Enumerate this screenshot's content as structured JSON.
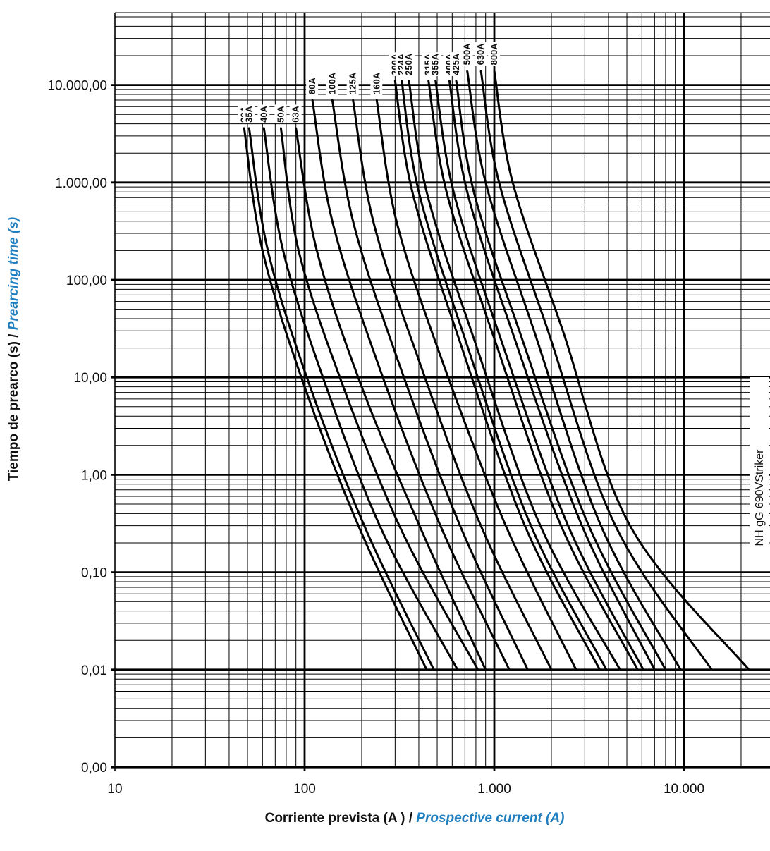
{
  "chart_data": {
    "type": "line",
    "x_scale": "log",
    "y_scale": "log",
    "xlim": [
      10,
      40000
    ],
    "ylim": [
      0.001,
      100000
    ],
    "grid": true,
    "x_ticks": [
      {
        "value": 10,
        "label": "10"
      },
      {
        "value": 100,
        "label": "100"
      },
      {
        "value": 1000,
        "label": "1.000"
      },
      {
        "value": 10000,
        "label": "10.000"
      }
    ],
    "y_ticks": [
      {
        "value": 0.001,
        "label": "0,00"
      },
      {
        "value": 0.01,
        "label": "0,01"
      },
      {
        "value": 0.1,
        "label": "0,10"
      },
      {
        "value": 1,
        "label": "1,00"
      },
      {
        "value": 10,
        "label": "10,00"
      },
      {
        "value": 100,
        "label": "100,00"
      },
      {
        "value": 1000,
        "label": "1.000,00"
      },
      {
        "value": 10000,
        "label": "10.000,00"
      }
    ],
    "xlabel": {
      "es": "Corriente prevista (A ) / ",
      "en": "Prospective current (A)"
    },
    "ylabel": {
      "es": "Tiempo de prearco (s) / ",
      "en": "Prearcing time (s)"
    },
    "side_label": "NH gG 690VStriker",
    "series": [
      {
        "name": "32A",
        "points": [
          [
            48,
            3600
          ],
          [
            60,
            200
          ],
          [
            100,
            8
          ],
          [
            200,
            0.25
          ],
          [
            440,
            0.01
          ]
        ]
      },
      {
        "name": "35A",
        "points": [
          [
            51,
            3600
          ],
          [
            64,
            200
          ],
          [
            107,
            8
          ],
          [
            215,
            0.25
          ],
          [
            480,
            0.01
          ]
        ]
      },
      {
        "name": "40A",
        "points": [
          [
            61,
            3600
          ],
          [
            77,
            200
          ],
          [
            130,
            8
          ],
          [
            260,
            0.25
          ],
          [
            640,
            0.01
          ]
        ]
      },
      {
        "name": "50A",
        "points": [
          [
            75,
            3600
          ],
          [
            93,
            200
          ],
          [
            160,
            8
          ],
          [
            330,
            0.25
          ],
          [
            820,
            0.01
          ]
        ]
      },
      {
        "name": "63A",
        "points": [
          [
            90,
            3600
          ],
          [
            116,
            200
          ],
          [
            200,
            8
          ],
          [
            420,
            0.25
          ],
          [
            900,
            0.01
          ]
        ]
      },
      {
        "name": "80A",
        "points": [
          [
            110,
            7000
          ],
          [
            140,
            400
          ],
          [
            240,
            15
          ],
          [
            520,
            0.3
          ],
          [
            1200,
            0.01
          ]
        ]
      },
      {
        "name": "100A",
        "points": [
          [
            140,
            7000
          ],
          [
            180,
            400
          ],
          [
            310,
            15
          ],
          [
            660,
            0.3
          ],
          [
            1500,
            0.01
          ]
        ]
      },
      {
        "name": "125A",
        "points": [
          [
            180,
            7000
          ],
          [
            230,
            400
          ],
          [
            400,
            15
          ],
          [
            850,
            0.3
          ],
          [
            2000,
            0.01
          ]
        ]
      },
      {
        "name": "160A",
        "points": [
          [
            240,
            7000
          ],
          [
            305,
            400
          ],
          [
            530,
            15
          ],
          [
            1150,
            0.3
          ],
          [
            2700,
            0.01
          ]
        ]
      },
      {
        "name": "200A",
        "points": [
          [
            300,
            11000
          ],
          [
            370,
            800
          ],
          [
            650,
            25
          ],
          [
            1450,
            0.3
          ],
          [
            3600,
            0.01
          ]
        ]
      },
      {
        "name": "224A",
        "points": [
          [
            325,
            11000
          ],
          [
            400,
            800
          ],
          [
            700,
            25
          ],
          [
            1560,
            0.3
          ],
          [
            3900,
            0.01
          ]
        ]
      },
      {
        "name": "250A",
        "points": [
          [
            355,
            11000
          ],
          [
            440,
            800
          ],
          [
            780,
            25
          ],
          [
            1750,
            0.3
          ],
          [
            4600,
            0.01
          ]
        ]
      },
      {
        "name": "315A",
        "points": [
          [
            450,
            11000
          ],
          [
            560,
            800
          ],
          [
            1000,
            25
          ],
          [
            2250,
            0.3
          ],
          [
            5700,
            0.01
          ]
        ]
      },
      {
        "name": "355A",
        "points": [
          [
            490,
            11000
          ],
          [
            610,
            800
          ],
          [
            1080,
            25
          ],
          [
            2450,
            0.3
          ],
          [
            6100,
            0.01
          ]
        ]
      },
      {
        "name": "400A",
        "points": [
          [
            580,
            11000
          ],
          [
            720,
            800
          ],
          [
            1280,
            25
          ],
          [
            2900,
            0.3
          ],
          [
            7000,
            0.01
          ]
        ]
      },
      {
        "name": "425A",
        "points": [
          [
            630,
            11000
          ],
          [
            780,
            800
          ],
          [
            1400,
            25
          ],
          [
            3150,
            0.3
          ],
          [
            8000,
            0.01
          ]
        ]
      },
      {
        "name": "500A",
        "points": [
          [
            720,
            14000
          ],
          [
            900,
            1000
          ],
          [
            1620,
            30
          ],
          [
            3650,
            0.3
          ],
          [
            9600,
            0.01
          ]
        ]
      },
      {
        "name": "630A",
        "points": [
          [
            850,
            14000
          ],
          [
            1060,
            1000
          ],
          [
            1920,
            30
          ],
          [
            4350,
            0.3
          ],
          [
            14000,
            0.01
          ]
        ]
      },
      {
        "name": "800A",
        "points": [
          [
            1000,
            14000
          ],
          [
            1250,
            1000
          ],
          [
            2300,
            30
          ],
          [
            5200,
            0.3
          ],
          [
            22000,
            0.01
          ]
        ]
      }
    ]
  }
}
